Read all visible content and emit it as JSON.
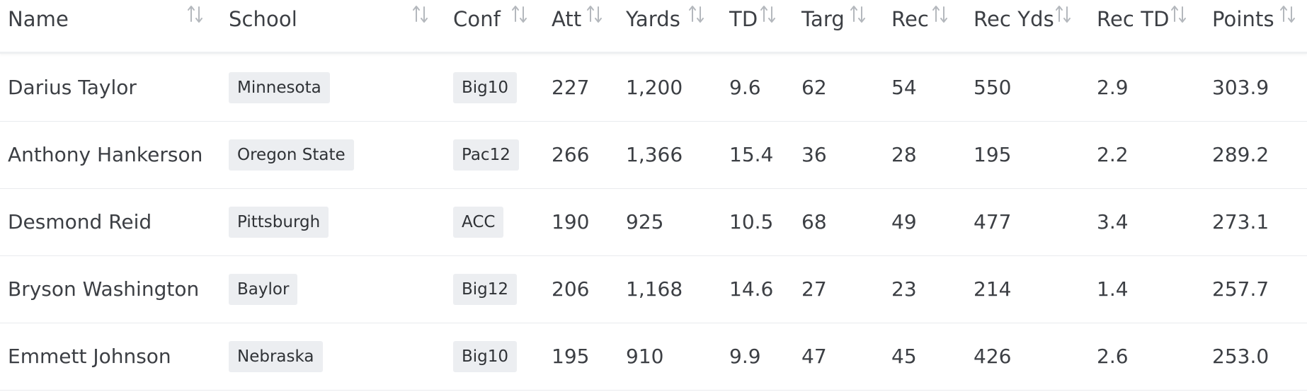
{
  "table": {
    "columns": [
      {
        "key": "name",
        "label": "Name"
      },
      {
        "key": "school",
        "label": "School"
      },
      {
        "key": "conf",
        "label": "Conf"
      },
      {
        "key": "att",
        "label": "Att"
      },
      {
        "key": "yards",
        "label": "Yards"
      },
      {
        "key": "td",
        "label": "TD"
      },
      {
        "key": "targ",
        "label": "Targ"
      },
      {
        "key": "rec",
        "label": "Rec"
      },
      {
        "key": "rec_yds",
        "label": "Rec Yds"
      },
      {
        "key": "rec_td",
        "label": "Rec TD"
      },
      {
        "key": "points",
        "label": "Points"
      }
    ],
    "sort_icon": "sort-arrows-icon",
    "rows": [
      {
        "name": "Darius Taylor",
        "school": "Minnesota",
        "conf": "Big10",
        "att": "227",
        "yards": "1,200",
        "td": "9.6",
        "targ": "62",
        "rec": "54",
        "rec_yds": "550",
        "rec_td": "2.9",
        "points": "303.9"
      },
      {
        "name": "Anthony Hankerson",
        "school": "Oregon State",
        "conf": "Pac12",
        "att": "266",
        "yards": "1,366",
        "td": "15.4",
        "targ": "36",
        "rec": "28",
        "rec_yds": "195",
        "rec_td": "2.2",
        "points": "289.2"
      },
      {
        "name": "Desmond Reid",
        "school": "Pittsburgh",
        "conf": "ACC",
        "att": "190",
        "yards": "925",
        "td": "10.5",
        "targ": "68",
        "rec": "49",
        "rec_yds": "477",
        "rec_td": "3.4",
        "points": "273.1"
      },
      {
        "name": "Bryson Washington",
        "school": "Baylor",
        "conf": "Big12",
        "att": "206",
        "yards": "1,168",
        "td": "14.6",
        "targ": "27",
        "rec": "23",
        "rec_yds": "214",
        "rec_td": "1.4",
        "points": "257.7"
      },
      {
        "name": "Emmett Johnson",
        "school": "Nebraska",
        "conf": "Big10",
        "att": "195",
        "yards": "910",
        "td": "9.9",
        "targ": "47",
        "rec": "45",
        "rec_yds": "426",
        "rec_td": "2.6",
        "points": "253.0"
      }
    ]
  },
  "colors": {
    "text": "#3c3f44",
    "badge_bg": "#eceef1",
    "sort_icon": "#b4b8bd",
    "divider": "#e9ebee"
  }
}
